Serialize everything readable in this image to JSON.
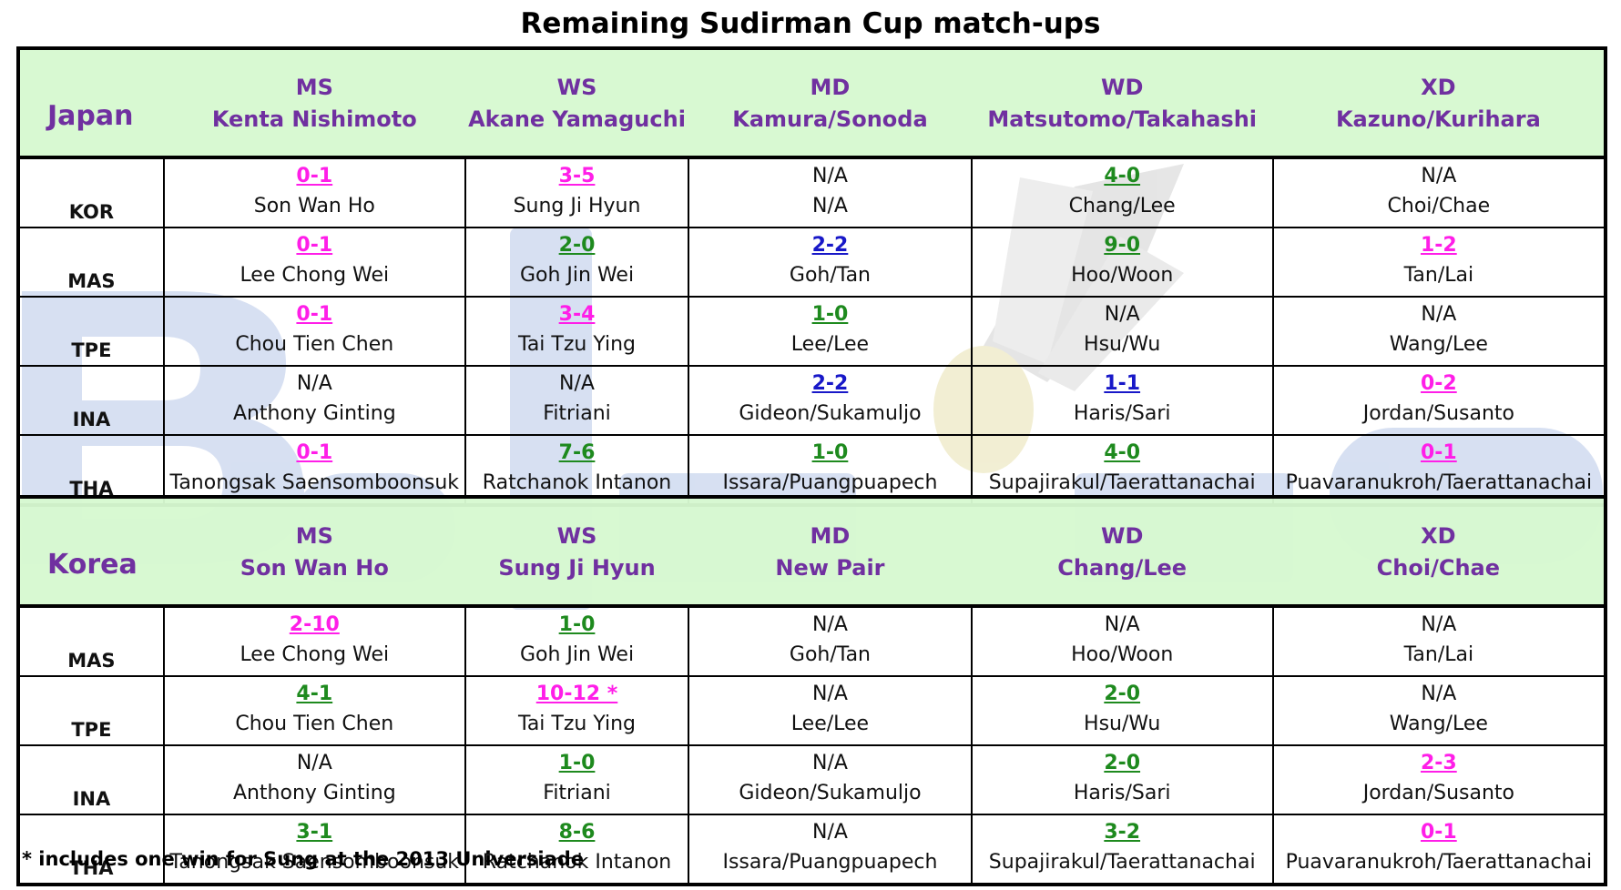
{
  "title": "Remaining Sudirman Cup match-ups",
  "footnote": "* includes one win for Sung at the 2013 Universiade",
  "colors": {
    "header_bg": "#d6f9d0",
    "header_text": "#7030a0",
    "losing_record": "#ff1ee8",
    "winning_record": "#1e8a1e",
    "even_record": "#1818c8",
    "watermark": "#c9d6ee"
  },
  "watermark_icon": "shuttlecock-icon",
  "tables": [
    {
      "team": "Japan",
      "events": [
        {
          "code": "MS",
          "player": "Kenta Nishimoto"
        },
        {
          "code": "WS",
          "player": "Akane Yamaguchi"
        },
        {
          "code": "MD",
          "player": "Kamura/Sonoda"
        },
        {
          "code": "WD",
          "player": "Matsutomo/Takahashi"
        },
        {
          "code": "XD",
          "player": "Kazuno/Kurihara"
        }
      ],
      "rows": [
        {
          "country": "KOR",
          "cells": [
            {
              "record": "0-1",
              "status": "pink",
              "opponent": "Son Wan Ho"
            },
            {
              "record": "3-5",
              "status": "pink",
              "opponent": "Sung Ji Hyun"
            },
            {
              "record": "N/A",
              "status": "plain",
              "opponent": "N/A"
            },
            {
              "record": "4-0",
              "status": "green",
              "opponent": "Chang/Lee"
            },
            {
              "record": "N/A",
              "status": "plain",
              "opponent": "Choi/Chae"
            }
          ]
        },
        {
          "country": "MAS",
          "cells": [
            {
              "record": "0-1",
              "status": "pink",
              "opponent": "Lee Chong Wei"
            },
            {
              "record": "2-0",
              "status": "green",
              "opponent": "Goh Jin Wei"
            },
            {
              "record": "2-2",
              "status": "blue",
              "opponent": "Goh/Tan"
            },
            {
              "record": "9-0",
              "status": "green",
              "opponent": "Hoo/Woon"
            },
            {
              "record": "1-2",
              "status": "pink",
              "opponent": "Tan/Lai"
            }
          ]
        },
        {
          "country": "TPE",
          "cells": [
            {
              "record": "0-1",
              "status": "pink",
              "opponent": "Chou Tien Chen"
            },
            {
              "record": "3-4",
              "status": "pink",
              "opponent": "Tai Tzu Ying"
            },
            {
              "record": "1-0",
              "status": "green",
              "opponent": "Lee/Lee"
            },
            {
              "record": "N/A",
              "status": "plain",
              "opponent": "Hsu/Wu"
            },
            {
              "record": "N/A",
              "status": "plain",
              "opponent": "Wang/Lee"
            }
          ]
        },
        {
          "country": "INA",
          "cells": [
            {
              "record": "N/A",
              "status": "plain",
              "opponent": "Anthony Ginting"
            },
            {
              "record": "N/A",
              "status": "plain",
              "opponent": "Fitriani"
            },
            {
              "record": "2-2",
              "status": "blue",
              "opponent": "Gideon/Sukamuljo"
            },
            {
              "record": "1-1",
              "status": "blue",
              "opponent": "Haris/Sari"
            },
            {
              "record": "0-2",
              "status": "pink",
              "opponent": "Jordan/Susanto"
            }
          ]
        },
        {
          "country": "THA",
          "cells": [
            {
              "record": "0-1",
              "status": "pink",
              "opponent": "Tanongsak Saensomboonsuk"
            },
            {
              "record": "7-6",
              "status": "green",
              "opponent": "Ratchanok Intanon"
            },
            {
              "record": "1-0",
              "status": "green",
              "opponent": "Issara/Puangpuapech"
            },
            {
              "record": "4-0",
              "status": "green",
              "opponent": "Supajirakul/Taerattanachai"
            },
            {
              "record": "0-1",
              "status": "pink",
              "opponent": "Puavaranukroh/Taerattanachai"
            }
          ]
        }
      ]
    },
    {
      "team": "Korea",
      "events": [
        {
          "code": "MS",
          "player": "Son Wan Ho"
        },
        {
          "code": "WS",
          "player": "Sung Ji Hyun"
        },
        {
          "code": "MD",
          "player": "New Pair"
        },
        {
          "code": "WD",
          "player": "Chang/Lee"
        },
        {
          "code": "XD",
          "player": "Choi/Chae"
        }
      ],
      "rows": [
        {
          "country": "MAS",
          "cells": [
            {
              "record": "2-10",
              "status": "pink",
              "opponent": "Lee Chong Wei"
            },
            {
              "record": "1-0",
              "status": "green",
              "opponent": "Goh Jin Wei"
            },
            {
              "record": "N/A",
              "status": "plain",
              "opponent": "Goh/Tan"
            },
            {
              "record": "N/A",
              "status": "plain",
              "opponent": "Hoo/Woon"
            },
            {
              "record": "N/A",
              "status": "plain",
              "opponent": "Tan/Lai"
            }
          ]
        },
        {
          "country": "TPE",
          "cells": [
            {
              "record": "4-1",
              "status": "green",
              "opponent": "Chou Tien Chen"
            },
            {
              "record": "10-12 *",
              "status": "pink",
              "opponent": "Tai Tzu Ying"
            },
            {
              "record": "N/A",
              "status": "plain",
              "opponent": "Lee/Lee"
            },
            {
              "record": "2-0",
              "status": "green",
              "opponent": "Hsu/Wu"
            },
            {
              "record": "N/A",
              "status": "plain",
              "opponent": "Wang/Lee"
            }
          ]
        },
        {
          "country": "INA",
          "cells": [
            {
              "record": "N/A",
              "status": "plain",
              "opponent": "Anthony Ginting"
            },
            {
              "record": "1-0",
              "status": "green",
              "opponent": "Fitriani"
            },
            {
              "record": "N/A",
              "status": "plain",
              "opponent": "Gideon/Sukamuljo"
            },
            {
              "record": "2-0",
              "status": "green",
              "opponent": "Haris/Sari"
            },
            {
              "record": "2-3",
              "status": "pink",
              "opponent": "Jordan/Susanto"
            }
          ]
        },
        {
          "country": "THA",
          "cells": [
            {
              "record": "3-1",
              "status": "green",
              "opponent": "Tanongsak Saensomboonsuk"
            },
            {
              "record": "8-6",
              "status": "green",
              "opponent": "Ratchanok Intanon"
            },
            {
              "record": "N/A",
              "status": "plain",
              "opponent": "Issara/Puangpuapech"
            },
            {
              "record": "3-2",
              "status": "green",
              "opponent": "Supajirakul/Taerattanachai"
            },
            {
              "record": "0-1",
              "status": "pink",
              "opponent": "Puavaranukroh/Taerattanachai"
            }
          ]
        }
      ]
    }
  ]
}
